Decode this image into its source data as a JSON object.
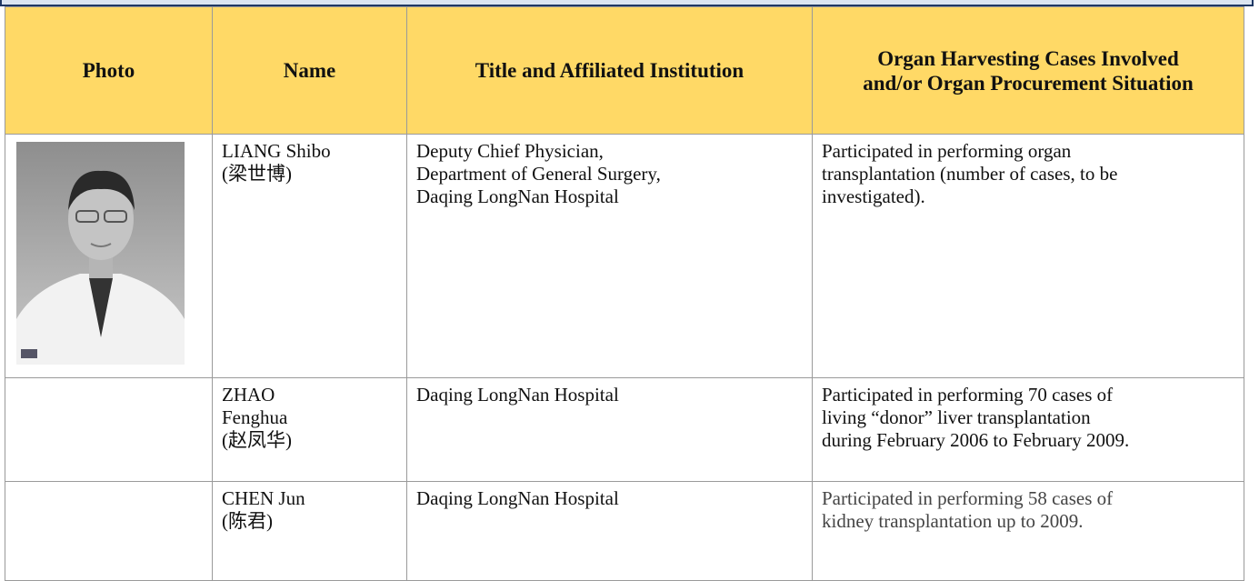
{
  "table": {
    "header": [
      "Photo",
      "Name",
      "Title and Affiliated Institution",
      "Organ Harvesting Cases Involved and/or Organ Procurement Situation"
    ],
    "rows": [
      {
        "name": [
          "LIANG Shibo",
          "(梁世博)"
        ],
        "title": [
          "Deputy Chief Physician,",
          "Department of General Surgery,",
          "Daqing LongNan Hospital"
        ],
        "cases": [
          "Participated in performing organ",
          "transplantation (number of cases, to be",
          "investigated)."
        ]
      },
      {
        "name": [
          "ZHAO",
          "Fenghua",
          "(赵凤华)"
        ],
        "title": [
          "Daqing LongNan Hospital"
        ],
        "cases": [
          "Participated in performing 70 cases of",
          "living “donor” liver transplantation",
          "during February 2006 to February 2009."
        ]
      },
      {
        "name": [
          "CHEN Jun",
          "(陈君)"
        ],
        "title": [
          "Daqing LongNan Hospital"
        ],
        "cases": [
          "Participated in performing 58 cases of",
          "kidney transplantation up to 2009."
        ]
      }
    ]
  }
}
